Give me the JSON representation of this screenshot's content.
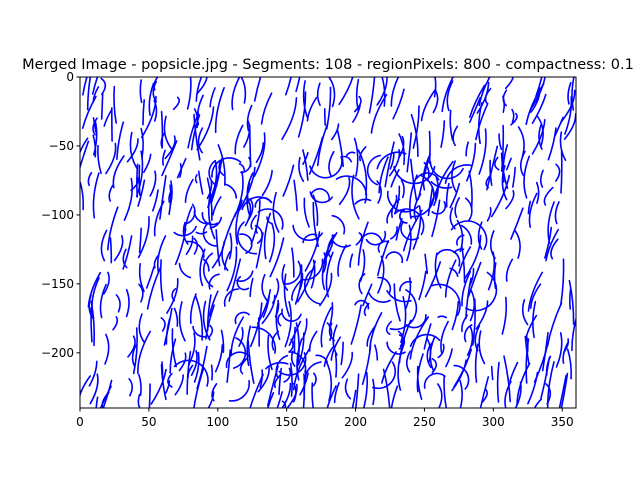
{
  "chart_data": {
    "type": "line",
    "title": "Merged Image - popsicle.jpg - Segments: 108 - regionPixels: 800 - compactness: 0.1",
    "xlabel": "",
    "ylabel": "",
    "xlim": [
      0,
      360
    ],
    "ylim": [
      -240,
      0
    ],
    "x_ticks": [
      0,
      50,
      100,
      150,
      200,
      250,
      300,
      350
    ],
    "y_ticks": [
      0,
      -50,
      -100,
      -150,
      -200
    ],
    "grid": false,
    "legend": "none",
    "series_color": "#0000ff",
    "frame_color": "#000000"
  }
}
